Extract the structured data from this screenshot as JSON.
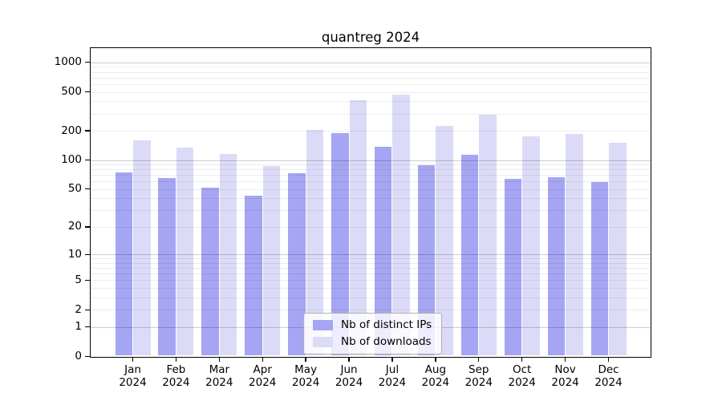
{
  "title": "quantreg 2024",
  "legend": {
    "items": [
      {
        "label": "Nb of distinct IPs",
        "color": "#a5a5f3"
      },
      {
        "label": "Nb of downloads",
        "color": "#dbdbf8"
      }
    ]
  },
  "chart_data": {
    "type": "bar",
    "title": "quantreg 2024",
    "categories": [
      "Jan",
      "Feb",
      "Mar",
      "Apr",
      "May",
      "Jun",
      "Jul",
      "Aug",
      "Sep",
      "Oct",
      "Nov",
      "Dec"
    ],
    "category_year": "2024",
    "series": [
      {
        "name": "Nb of distinct IPs",
        "color": "#a5a5f3",
        "values": [
          75,
          65,
          52,
          43,
          73,
          190,
          138,
          88,
          114,
          64,
          66,
          59
        ]
      },
      {
        "name": "Nb of downloads",
        "color": "#dbdbf8",
        "values": [
          160,
          135,
          115,
          86,
          205,
          410,
          470,
          225,
          292,
          176,
          186,
          151
        ]
      }
    ],
    "xlabel": "",
    "ylabel": "",
    "yscale": "log1p",
    "ylim": [
      0,
      1400
    ],
    "yticks": [
      0,
      1,
      2,
      5,
      10,
      20,
      50,
      100,
      200,
      500,
      1000
    ],
    "major_grid_values": [
      1,
      10,
      100,
      1000
    ],
    "minor_grid_values": [
      2,
      3,
      4,
      5,
      6,
      7,
      8,
      9,
      20,
      30,
      40,
      50,
      60,
      70,
      80,
      90,
      200,
      300,
      400,
      500,
      600,
      700,
      800,
      900
    ],
    "grid": "on",
    "grid_major_color": "rgba(0,0,0,0.20)",
    "grid_minor_color": "rgba(0,0,0,0.07)",
    "legend_position": "bottom-center"
  }
}
